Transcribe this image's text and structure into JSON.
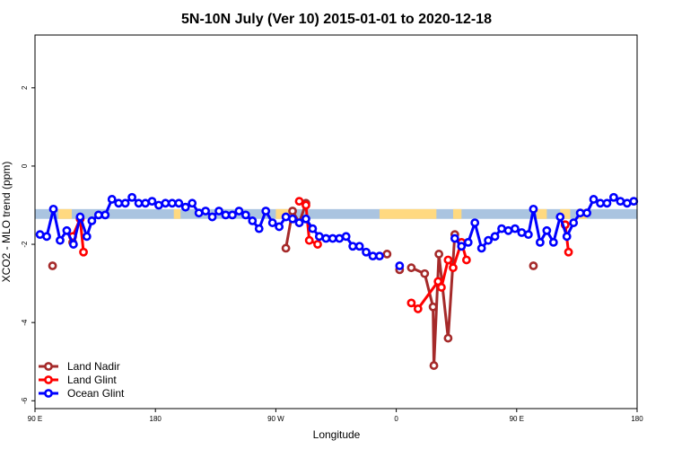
{
  "chart_data": {
    "type": "line",
    "title": "5N-10N July (Ver 10)   2015-01-01 to 2020-12-18",
    "xlabel": "Longitude",
    "ylabel": "XCO2 - MLO trend (ppm)",
    "xlim": [
      0,
      360
    ],
    "ylim": [
      -6.2,
      3.35
    ],
    "x_ticks": [
      {
        "value": 0,
        "label": "90 E"
      },
      {
        "value": 72,
        "label": "180"
      },
      {
        "value": 144,
        "label": "90 W"
      },
      {
        "value": 216,
        "label": "0"
      },
      {
        "value": 288,
        "label": "90 E"
      },
      {
        "value": 360,
        "label": "180"
      }
    ],
    "y_ticks": [
      {
        "value": 2,
        "label": "2"
      },
      {
        "value": 0,
        "label": "0"
      },
      {
        "value": -2,
        "label": "-2"
      },
      {
        "value": -4,
        "label": "-4"
      },
      {
        "value": -6,
        "label": "-6"
      }
    ],
    "legend_position": "bottom-left",
    "grid": false,
    "land_sea_strip": {
      "y_top": -1.1,
      "y_bottom": -1.35,
      "ocean_color": "#aac4e0",
      "land_color": "#ffd980",
      "land_segments": [
        [
          14,
          22
        ],
        [
          83,
          87
        ],
        [
          144,
          152
        ],
        [
          206,
          240
        ],
        [
          250,
          255
        ],
        [
          300,
          306
        ],
        [
          314,
          320
        ],
        [
          324,
          330
        ]
      ]
    },
    "series": [
      {
        "name": "Land Nadir",
        "color": "#a52a2a",
        "segments": [
          [
            [
              10.5,
              -2.55
            ]
          ],
          [
            [
              22.5,
              -1.95
            ],
            [
              27,
              -1.35
            ]
          ],
          [
            [
              150,
              -2.1
            ],
            [
              154,
              -1.15
            ],
            [
              158,
              -1.45
            ],
            [
              162,
              -0.95
            ]
          ],
          [
            [
              210.5,
              -2.25
            ]
          ],
          [
            [
              218,
              -2.65
            ]
          ],
          [
            [
              225,
              -2.6
            ],
            [
              233,
              -2.75
            ],
            [
              238,
              -3.6
            ],
            [
              238.5,
              -5.1
            ],
            [
              241.5,
              -2.25
            ],
            [
              247,
              -4.4
            ],
            [
              251,
              -1.75
            ],
            [
              255,
              -2.05
            ]
          ],
          [
            [
              298,
              -2.55
            ]
          ],
          [
            [
              317,
              -1.5
            ]
          ]
        ]
      },
      {
        "name": "Land Glint",
        "color": "#ff0000",
        "segments": [
          [
            [
              22.5,
              -1.8
            ],
            [
              27,
              -1.35
            ],
            [
              29,
              -2.2
            ]
          ],
          [
            [
              158,
              -0.9
            ],
            [
              162,
              -1.0
            ],
            [
              164,
              -1.9
            ],
            [
              169,
              -2.0
            ]
          ],
          [
            [
              225,
              -3.5
            ],
            [
              229,
              -3.65
            ],
            [
              241,
              -2.95
            ],
            [
              243,
              -3.1
            ],
            [
              247,
              -2.4
            ],
            [
              250,
              -2.6
            ],
            [
              255,
              -1.95
            ],
            [
              258,
              -2.4
            ]
          ],
          [
            [
              317,
              -1.5
            ],
            [
              319,
              -2.2
            ]
          ]
        ]
      },
      {
        "name": "Ocean Glint",
        "color": "#0000ff",
        "segments": [
          [
            [
              3,
              -1.75
            ],
            [
              7,
              -1.8
            ],
            [
              11,
              -1.1
            ],
            [
              15,
              -1.9
            ],
            [
              19,
              -1.65
            ],
            [
              23,
              -2.0
            ],
            [
              27,
              -1.3
            ],
            [
              31,
              -1.8
            ],
            [
              34,
              -1.4
            ],
            [
              38,
              -1.25
            ],
            [
              42,
              -1.25
            ],
            [
              46,
              -0.85
            ],
            [
              50,
              -0.95
            ],
            [
              54,
              -0.95
            ],
            [
              58,
              -0.8
            ],
            [
              62,
              -0.95
            ],
            [
              66,
              -0.95
            ],
            [
              70,
              -0.9
            ],
            [
              74,
              -1.0
            ],
            [
              78,
              -0.95
            ],
            [
              82,
              -0.95
            ],
            [
              86,
              -0.95
            ],
            [
              90,
              -1.05
            ],
            [
              94,
              -0.95
            ],
            [
              98,
              -1.2
            ],
            [
              102,
              -1.15
            ],
            [
              106,
              -1.3
            ],
            [
              110,
              -1.15
            ],
            [
              114,
              -1.25
            ],
            [
              118,
              -1.25
            ],
            [
              122,
              -1.15
            ],
            [
              126,
              -1.25
            ],
            [
              130,
              -1.4
            ],
            [
              134,
              -1.6
            ],
            [
              138,
              -1.15
            ],
            [
              142,
              -1.45
            ],
            [
              146,
              -1.55
            ],
            [
              150,
              -1.3
            ],
            [
              154,
              -1.35
            ],
            [
              158,
              -1.45
            ],
            [
              162,
              -1.35
            ],
            [
              166,
              -1.6
            ],
            [
              170,
              -1.8
            ],
            [
              174,
              -1.85
            ],
            [
              178,
              -1.85
            ],
            [
              182,
              -1.85
            ],
            [
              186,
              -1.8
            ],
            [
              190,
              -2.05
            ],
            [
              194,
              -2.05
            ],
            [
              198,
              -2.2
            ],
            [
              202,
              -2.3
            ],
            [
              206,
              -2.3
            ]
          ],
          [
            [
              218,
              -2.55
            ]
          ],
          [
            [
              251,
              -1.85
            ],
            [
              255,
              -2.05
            ],
            [
              259,
              -1.95
            ],
            [
              263,
              -1.45
            ],
            [
              267,
              -2.1
            ],
            [
              271,
              -1.9
            ],
            [
              275,
              -1.8
            ],
            [
              279,
              -1.6
            ],
            [
              283,
              -1.65
            ],
            [
              287,
              -1.6
            ],
            [
              291,
              -1.7
            ],
            [
              295,
              -1.75
            ],
            [
              298,
              -1.1
            ],
            [
              302,
              -1.95
            ],
            [
              306,
              -1.65
            ],
            [
              310,
              -1.95
            ],
            [
              314,
              -1.3
            ],
            [
              318,
              -1.8
            ],
            [
              322,
              -1.45
            ],
            [
              326,
              -1.2
            ],
            [
              330,
              -1.2
            ],
            [
              334,
              -0.85
            ],
            [
              338,
              -0.95
            ],
            [
              342,
              -0.95
            ],
            [
              346,
              -0.8
            ],
            [
              350,
              -0.9
            ],
            [
              354,
              -0.95
            ],
            [
              358,
              -0.9
            ]
          ]
        ]
      }
    ]
  }
}
